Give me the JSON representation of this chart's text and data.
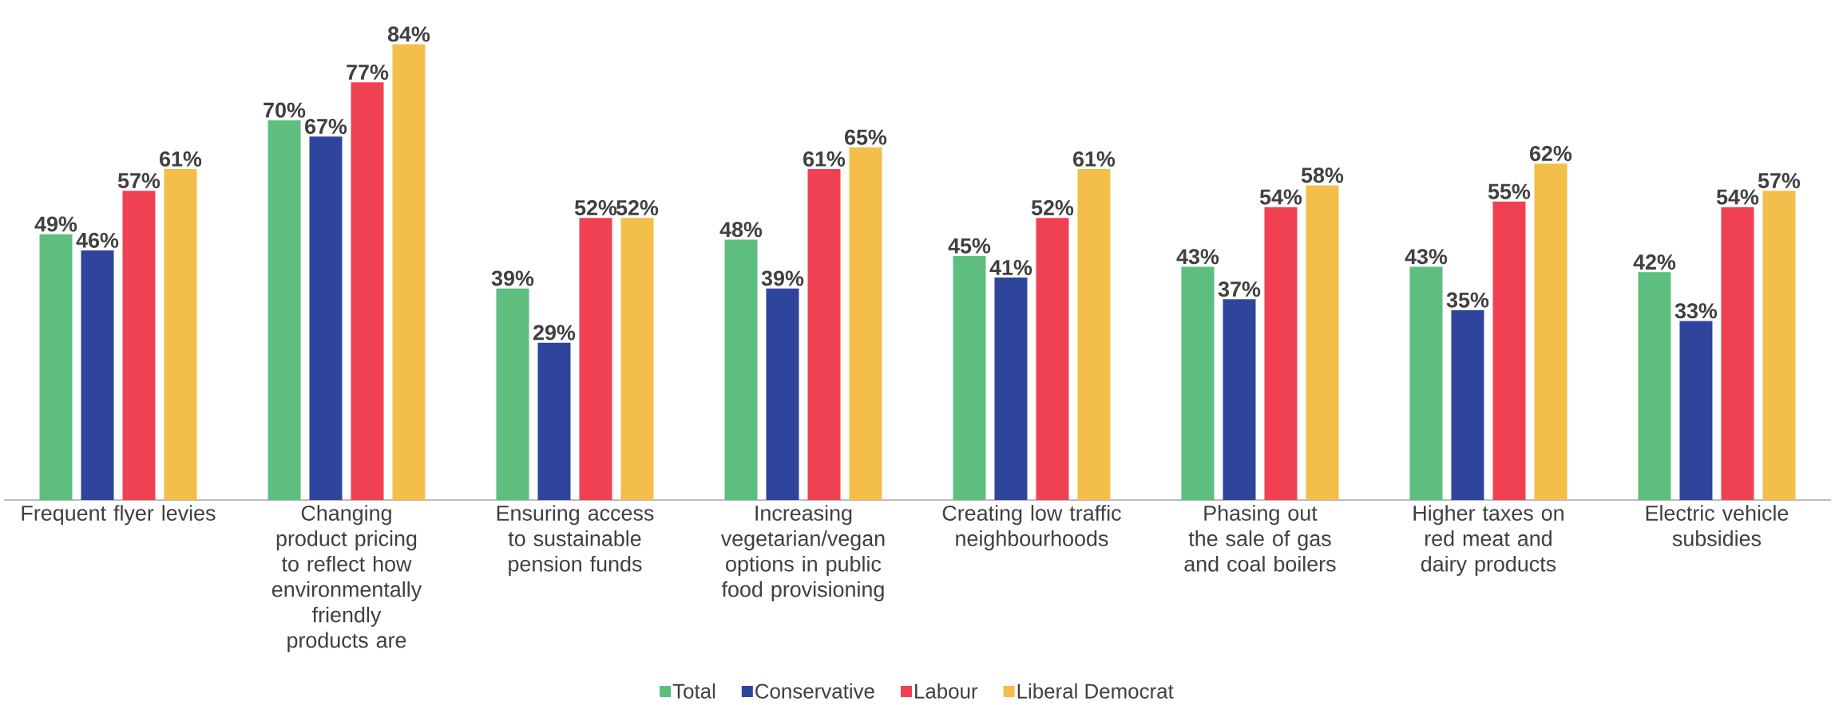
{
  "chart_data": {
    "type": "bar",
    "categories": [
      "Frequent flyer levies",
      "Changing product pricing to reflect how environmentally friendly products are",
      "Ensuring access to sustainable pension funds",
      "Increasing vegetarian/vegan options in public food provisioning",
      "Creating low traffic neighbourhoods",
      "Phasing out the sale of gas and coal boilers",
      "Higher taxes on red meat and dairy products",
      "Electric vehicle subsidies"
    ],
    "series": [
      {
        "name": "Total",
        "color": "#5dbe80",
        "values": [
          49,
          70,
          39,
          48,
          45,
          43,
          43,
          42
        ],
        "value_labels": [
          "49%",
          "70%",
          "39%",
          "48%",
          "45%",
          "43%",
          "43%",
          "42%"
        ]
      },
      {
        "name": "Conservative",
        "color": "#2e459b",
        "values": [
          46,
          67,
          29,
          39,
          41,
          37,
          35,
          33
        ],
        "value_labels": [
          "46%",
          "67%",
          "29%",
          "39%",
          "41%",
          "37%",
          "35%",
          "33%"
        ]
      },
      {
        "name": "Labour",
        "color": "#f04153",
        "values": [
          57,
          77,
          52,
          61,
          52,
          54,
          55,
          54
        ],
        "value_labels": [
          "57%",
          "77%",
          "52%",
          "61%",
          "52%",
          "54%",
          "55%",
          "54%"
        ]
      },
      {
        "name": "Liberal Democrat",
        "color": "#f3be49",
        "values": [
          61,
          84,
          52,
          65,
          61,
          58,
          62,
          57
        ],
        "value_labels": [
          "61%",
          "84%",
          "52%",
          "65%",
          "61%",
          "58%",
          "62%",
          "57%"
        ]
      }
    ],
    "legend": "bottom",
    "grid": false
  }
}
